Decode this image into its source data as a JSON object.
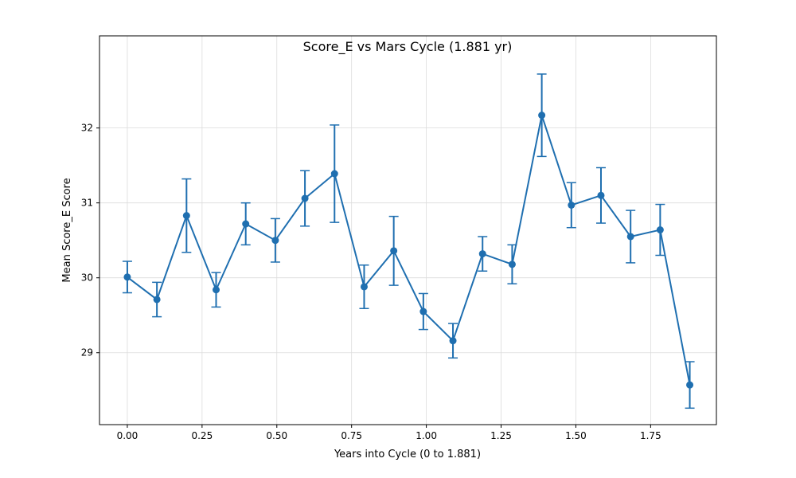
{
  "chart_data": {
    "type": "line",
    "title": "Score_E vs Mars Cycle (1.881 yr)",
    "xlabel": "Years into Cycle (0 to 1.881)",
    "ylabel": "Mean Score_E Score",
    "xlim": [
      -0.093,
      1.97
    ],
    "ylim": [
      28.04,
      33.23
    ],
    "xticks": [
      0,
      0.25,
      0.5,
      0.75,
      1.0,
      1.25,
      1.5,
      1.75
    ],
    "xtick_labels": [
      "0.00",
      "0.25",
      "0.50",
      "0.75",
      "1.00",
      "1.25",
      "1.50",
      "1.75"
    ],
    "yticks": [
      29,
      30,
      31,
      32
    ],
    "ytick_labels": [
      "29",
      "30",
      "31",
      "32"
    ],
    "grid": true,
    "color": "#1f6fb0",
    "series": [
      {
        "name": "Score_E",
        "x": [
          0.0,
          0.099,
          0.198,
          0.297,
          0.396,
          0.495,
          0.594,
          0.693,
          0.792,
          0.891,
          0.99,
          1.089,
          1.188,
          1.287,
          1.386,
          1.485,
          1.584,
          1.683,
          1.782,
          1.881
        ],
        "y": [
          30.01,
          29.71,
          30.83,
          29.84,
          30.72,
          30.5,
          31.06,
          31.39,
          29.88,
          30.36,
          29.55,
          29.16,
          30.32,
          30.18,
          32.17,
          30.97,
          31.1,
          30.55,
          30.64,
          28.57
        ],
        "yerr": [
          0.21,
          0.23,
          0.49,
          0.23,
          0.28,
          0.29,
          0.37,
          0.65,
          0.29,
          0.46,
          0.24,
          0.23,
          0.23,
          0.26,
          0.55,
          0.3,
          0.37,
          0.35,
          0.34,
          0.31
        ]
      }
    ]
  }
}
